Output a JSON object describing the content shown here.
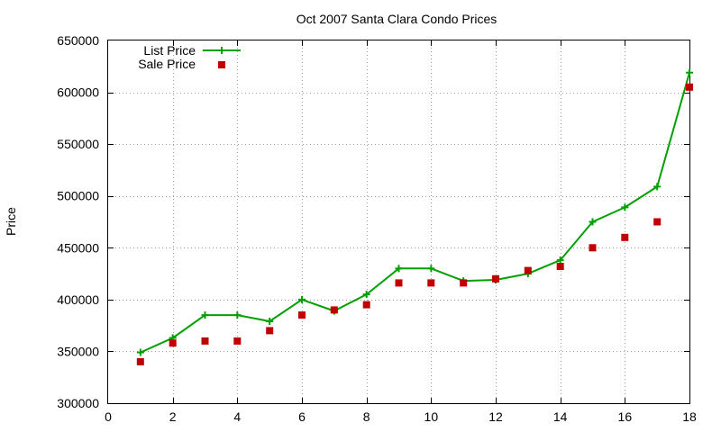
{
  "chart_data": {
    "type": "line",
    "title": "Oct 2007 Santa Clara Condo Prices",
    "xlabel": "",
    "ylabel": "Price",
    "xlim": [
      0,
      18
    ],
    "ylim": [
      300000,
      650000
    ],
    "xticks": [
      0,
      2,
      4,
      6,
      8,
      10,
      12,
      14,
      16,
      18
    ],
    "yticks": [
      300000,
      350000,
      400000,
      450000,
      500000,
      550000,
      600000,
      650000
    ],
    "grid": true,
    "legend_position": "top-left",
    "series": [
      {
        "name": "List Price",
        "style": "line-with-plus-markers",
        "color": "#00a000",
        "x": [
          1,
          2,
          3,
          4,
          5,
          6,
          7,
          8,
          9,
          10,
          11,
          12,
          13,
          14,
          15,
          16,
          17,
          18
        ],
        "y": [
          349000,
          363000,
          385000,
          385000,
          379000,
          400000,
          389000,
          405000,
          430000,
          430000,
          418000,
          419000,
          425000,
          438000,
          475000,
          489000,
          509000,
          619000
        ]
      },
      {
        "name": "Sale Price",
        "style": "square-points",
        "color": "#c00000",
        "x": [
          1,
          2,
          3,
          4,
          5,
          6,
          7,
          8,
          9,
          10,
          11,
          12,
          13,
          14,
          15,
          16,
          17,
          18
        ],
        "y": [
          340000,
          358000,
          360000,
          360000,
          370000,
          385000,
          390000,
          395000,
          416000,
          416000,
          416000,
          420000,
          428000,
          432000,
          450000,
          460000,
          475000,
          605000
        ]
      }
    ]
  }
}
